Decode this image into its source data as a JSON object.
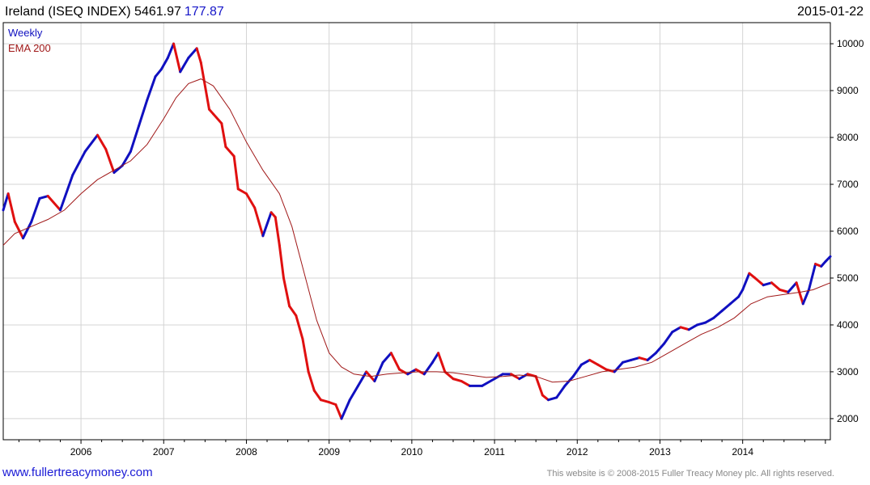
{
  "header": {
    "title": "Ireland (ISEQ INDEX) 5461.97",
    "change": "177.87",
    "date": "2015-01-22"
  },
  "footer": {
    "link": "www.fullertreacymoney.com",
    "copyright": "This website is © 2008-2015 Fuller Treacy Money plc. All rights reserved."
  },
  "colors": {
    "up": "#1010c0",
    "down": "#e01010",
    "ema": "#a01818",
    "grid": "#d4d4d4",
    "axis": "#000000"
  },
  "chart_data": {
    "type": "line",
    "title": "Ireland (ISEQ INDEX)",
    "legend": [
      "Weekly",
      "EMA 200"
    ],
    "legend_placement": "top-left",
    "xlim": [
      2005.06,
      2015.06
    ],
    "ylim": [
      1550,
      10450
    ],
    "x_ticks": [
      "2006",
      "2007",
      "2008",
      "2009",
      "2010",
      "2011",
      "2012",
      "2013",
      "2014"
    ],
    "y_ticks": [
      2000,
      3000,
      4000,
      5000,
      6000,
      7000,
      8000,
      9000,
      10000
    ],
    "grid": true,
    "series": [
      {
        "name": "Weekly",
        "points": [
          [
            2005.06,
            6450
          ],
          [
            2005.12,
            6800
          ],
          [
            2005.2,
            6200
          ],
          [
            2005.3,
            5850
          ],
          [
            2005.4,
            6200
          ],
          [
            2005.5,
            6700
          ],
          [
            2005.6,
            6750
          ],
          [
            2005.75,
            6450
          ],
          [
            2005.9,
            7200
          ],
          [
            2006.05,
            7700
          ],
          [
            2006.2,
            8050
          ],
          [
            2006.3,
            7750
          ],
          [
            2006.4,
            7250
          ],
          [
            2006.5,
            7400
          ],
          [
            2006.6,
            7700
          ],
          [
            2006.7,
            8250
          ],
          [
            2006.8,
            8800
          ],
          [
            2006.9,
            9300
          ],
          [
            2006.97,
            9450
          ],
          [
            2007.05,
            9700
          ],
          [
            2007.12,
            10000
          ],
          [
            2007.2,
            9400
          ],
          [
            2007.3,
            9700
          ],
          [
            2007.4,
            9900
          ],
          [
            2007.45,
            9600
          ],
          [
            2007.55,
            8600
          ],
          [
            2007.6,
            8500
          ],
          [
            2007.7,
            8300
          ],
          [
            2007.75,
            7800
          ],
          [
            2007.85,
            7600
          ],
          [
            2007.9,
            6900
          ],
          [
            2008.0,
            6800
          ],
          [
            2008.1,
            6500
          ],
          [
            2008.2,
            5900
          ],
          [
            2008.3,
            6400
          ],
          [
            2008.35,
            6300
          ],
          [
            2008.4,
            5700
          ],
          [
            2008.45,
            5000
          ],
          [
            2008.52,
            4400
          ],
          [
            2008.6,
            4200
          ],
          [
            2008.68,
            3700
          ],
          [
            2008.75,
            3000
          ],
          [
            2008.82,
            2600
          ],
          [
            2008.9,
            2400
          ],
          [
            2009.0,
            2350
          ],
          [
            2009.08,
            2300
          ],
          [
            2009.15,
            2000
          ],
          [
            2009.25,
            2400
          ],
          [
            2009.35,
            2700
          ],
          [
            2009.45,
            3000
          ],
          [
            2009.55,
            2800
          ],
          [
            2009.65,
            3200
          ],
          [
            2009.75,
            3400
          ],
          [
            2009.85,
            3050
          ],
          [
            2009.95,
            2950
          ],
          [
            2010.05,
            3050
          ],
          [
            2010.15,
            2950
          ],
          [
            2010.25,
            3200
          ],
          [
            2010.32,
            3400
          ],
          [
            2010.4,
            3000
          ],
          [
            2010.5,
            2850
          ],
          [
            2010.6,
            2800
          ],
          [
            2010.7,
            2700
          ],
          [
            2010.85,
            2700
          ],
          [
            2011.0,
            2850
          ],
          [
            2011.1,
            2950
          ],
          [
            2011.2,
            2950
          ],
          [
            2011.3,
            2850
          ],
          [
            2011.4,
            2950
          ],
          [
            2011.5,
            2900
          ],
          [
            2011.58,
            2500
          ],
          [
            2011.65,
            2400
          ],
          [
            2011.75,
            2450
          ],
          [
            2011.85,
            2700
          ],
          [
            2011.95,
            2900
          ],
          [
            2012.05,
            3150
          ],
          [
            2012.15,
            3250
          ],
          [
            2012.25,
            3150
          ],
          [
            2012.35,
            3050
          ],
          [
            2012.45,
            3000
          ],
          [
            2012.55,
            3200
          ],
          [
            2012.65,
            3250
          ],
          [
            2012.75,
            3300
          ],
          [
            2012.85,
            3250
          ],
          [
            2012.95,
            3400
          ],
          [
            2013.05,
            3600
          ],
          [
            2013.15,
            3850
          ],
          [
            2013.25,
            3950
          ],
          [
            2013.35,
            3900
          ],
          [
            2013.45,
            4000
          ],
          [
            2013.55,
            4050
          ],
          [
            2013.65,
            4150
          ],
          [
            2013.75,
            4300
          ],
          [
            2013.85,
            4450
          ],
          [
            2013.95,
            4600
          ],
          [
            2014.0,
            4750
          ],
          [
            2014.08,
            5100
          ],
          [
            2014.15,
            5000
          ],
          [
            2014.25,
            4850
          ],
          [
            2014.35,
            4900
          ],
          [
            2014.45,
            4750
          ],
          [
            2014.55,
            4700
          ],
          [
            2014.65,
            4900
          ],
          [
            2014.73,
            4450
          ],
          [
            2014.8,
            4750
          ],
          [
            2014.88,
            5300
          ],
          [
            2014.95,
            5250
          ],
          [
            2015.0,
            5350
          ],
          [
            2015.06,
            5460
          ]
        ]
      },
      {
        "name": "EMA 200",
        "points": [
          [
            2005.06,
            5700
          ],
          [
            2005.2,
            5950
          ],
          [
            2005.4,
            6100
          ],
          [
            2005.6,
            6250
          ],
          [
            2005.8,
            6450
          ],
          [
            2006.0,
            6800
          ],
          [
            2006.2,
            7100
          ],
          [
            2006.4,
            7300
          ],
          [
            2006.6,
            7500
          ],
          [
            2006.8,
            7850
          ],
          [
            2007.0,
            8400
          ],
          [
            2007.15,
            8850
          ],
          [
            2007.3,
            9150
          ],
          [
            2007.45,
            9250
          ],
          [
            2007.6,
            9100
          ],
          [
            2007.8,
            8600
          ],
          [
            2008.0,
            7900
          ],
          [
            2008.2,
            7300
          ],
          [
            2008.4,
            6800
          ],
          [
            2008.55,
            6100
          ],
          [
            2008.7,
            5100
          ],
          [
            2008.85,
            4100
          ],
          [
            2009.0,
            3400
          ],
          [
            2009.15,
            3100
          ],
          [
            2009.3,
            2950
          ],
          [
            2009.5,
            2900
          ],
          [
            2009.7,
            2950
          ],
          [
            2009.9,
            2980
          ],
          [
            2010.1,
            3000
          ],
          [
            2010.3,
            3000
          ],
          [
            2010.5,
            2980
          ],
          [
            2010.7,
            2930
          ],
          [
            2010.9,
            2880
          ],
          [
            2011.1,
            2900
          ],
          [
            2011.3,
            2930
          ],
          [
            2011.5,
            2900
          ],
          [
            2011.7,
            2780
          ],
          [
            2011.9,
            2800
          ],
          [
            2012.1,
            2900
          ],
          [
            2012.3,
            3000
          ],
          [
            2012.5,
            3050
          ],
          [
            2012.7,
            3100
          ],
          [
            2012.9,
            3200
          ],
          [
            2013.1,
            3400
          ],
          [
            2013.3,
            3600
          ],
          [
            2013.5,
            3800
          ],
          [
            2013.7,
            3950
          ],
          [
            2013.9,
            4150
          ],
          [
            2014.1,
            4450
          ],
          [
            2014.3,
            4600
          ],
          [
            2014.5,
            4650
          ],
          [
            2014.7,
            4700
          ],
          [
            2014.85,
            4750
          ],
          [
            2015.06,
            4900
          ]
        ]
      }
    ]
  }
}
